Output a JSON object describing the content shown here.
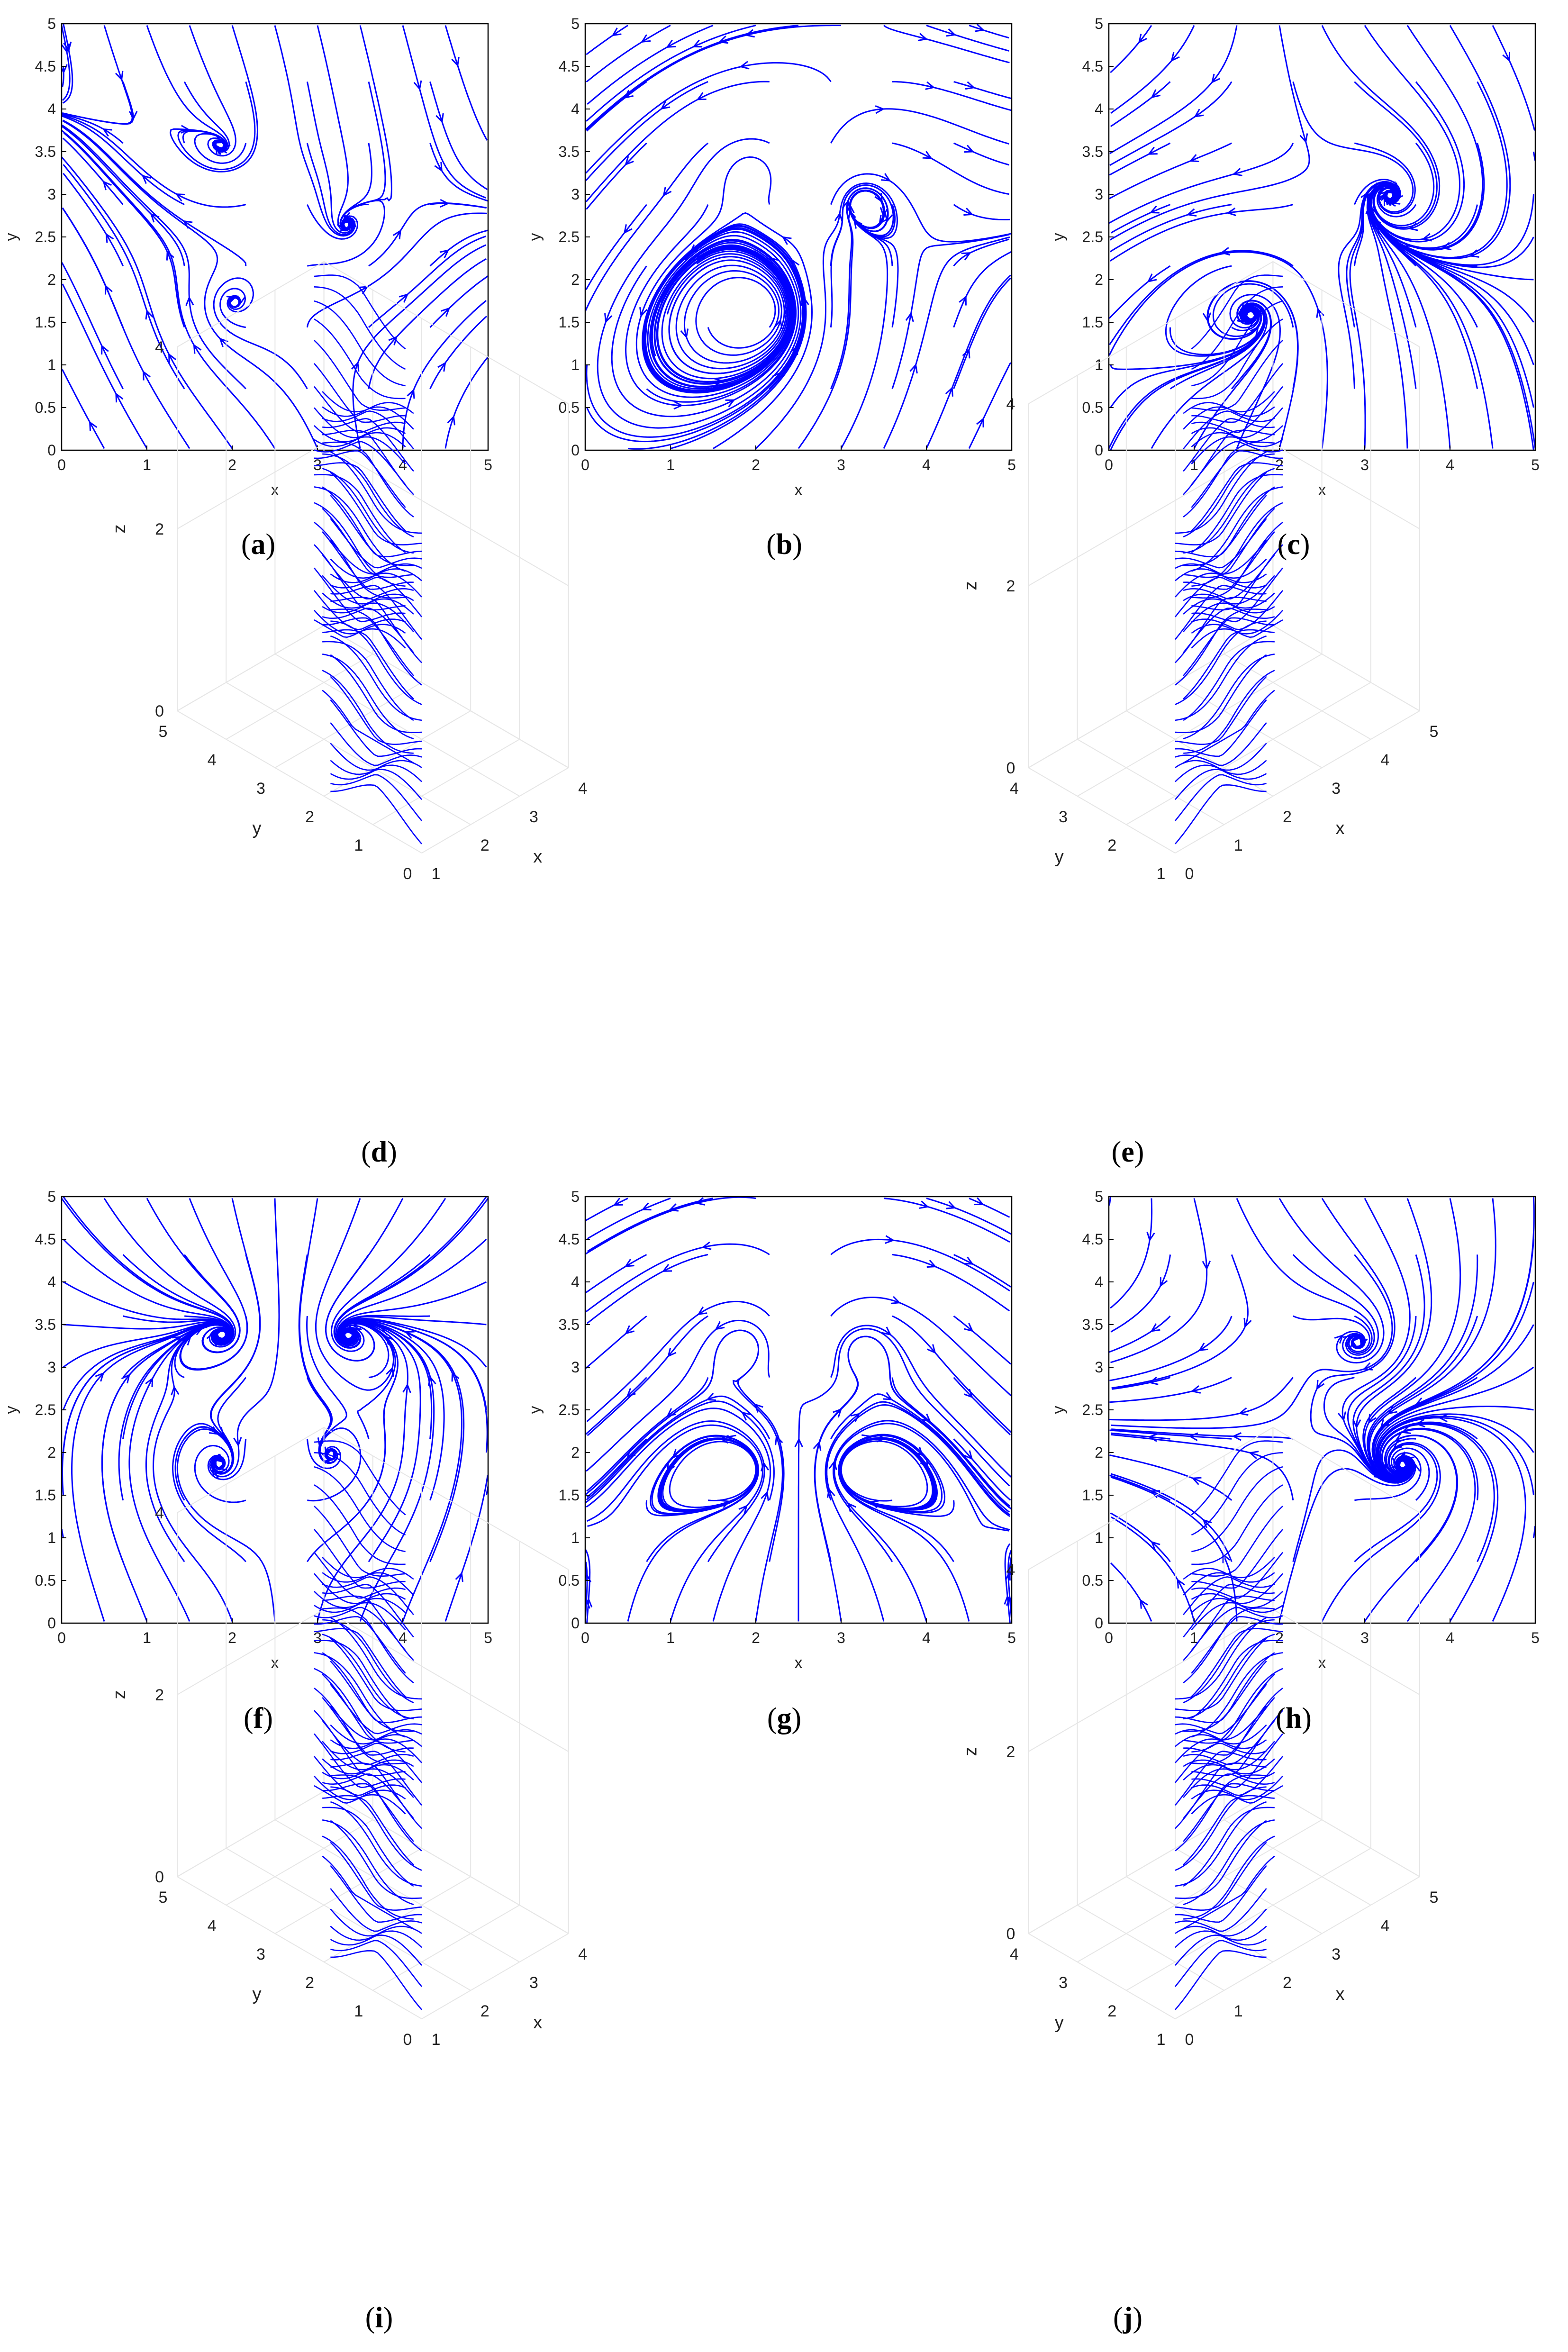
{
  "stroke_color": "#0000ff",
  "axis_color": "#000000",
  "grid_color": "#e6e6e6",
  "panels": [
    {
      "id": "a",
      "label": "a",
      "kind": "2d",
      "chart_data": {
        "type": "streamline",
        "xlabel": "x",
        "ylabel": "y",
        "xlim": [
          0,
          5
        ],
        "ylim": [
          0,
          5
        ],
        "xticks": [
          "0",
          "1",
          "2",
          "3",
          "4",
          "5"
        ],
        "yticks": [
          "0",
          "0.5",
          "1",
          "1.5",
          "2",
          "2.5",
          "3",
          "3.5",
          "4",
          "4.5",
          "5"
        ],
        "critical_points": [
          {
            "x": 1.95,
            "y": 3.55,
            "type": "spiral"
          },
          {
            "x": 3.3,
            "y": 2.6,
            "type": "spiral"
          },
          {
            "x": 2.0,
            "y": 1.7,
            "type": "spiral"
          },
          {
            "x": 2.6,
            "y": 2.55,
            "type": "saddle"
          },
          {
            "x": 2.4,
            "y": 3.3,
            "type": "saddle"
          }
        ]
      }
    },
    {
      "id": "b",
      "label": "b",
      "kind": "2d",
      "chart_data": {
        "type": "streamline",
        "xlabel": "x",
        "ylabel": "y",
        "xlim": [
          0,
          5
        ],
        "ylim": [
          0,
          5
        ],
        "xticks": [
          "0",
          "1",
          "2",
          "3",
          "4",
          "5"
        ],
        "yticks": [
          "0",
          "0.5",
          "1",
          "1.5",
          "2",
          "2.5",
          "3",
          "3.5",
          "4",
          "4.5",
          "5"
        ],
        "critical_points": [
          {
            "x": 1.95,
            "y": 3.25,
            "type": "center"
          },
          {
            "x": 3.25,
            "y": 2.9,
            "type": "center"
          },
          {
            "x": 2.0,
            "y": 1.65,
            "type": "center"
          },
          {
            "x": 2.65,
            "y": 2.5,
            "type": "saddle"
          }
        ]
      }
    },
    {
      "id": "c",
      "label": "c",
      "kind": "2d",
      "chart_data": {
        "type": "streamline",
        "xlabel": "x",
        "ylabel": "y",
        "xlim": [
          0,
          5
        ],
        "ylim": [
          0,
          5
        ],
        "xticks": [
          "0",
          "1",
          "2",
          "3",
          "4",
          "5"
        ],
        "yticks": [
          "0",
          "0.5",
          "1",
          "1.5",
          "2",
          "2.5",
          "3",
          "3.5",
          "4",
          "4.5",
          "5"
        ],
        "critical_points": [
          {
            "x": 3.3,
            "y": 3.0,
            "type": "spiral"
          },
          {
            "x": 1.7,
            "y": 1.6,
            "type": "spiral"
          },
          {
            "x": 2.5,
            "y": 2.4,
            "type": "saddle"
          }
        ]
      }
    },
    {
      "id": "d",
      "label": "d",
      "kind": "3d",
      "chart_data": {
        "type": "streamslice",
        "xlabel": "x",
        "ylabel": "y",
        "zlabel": "z",
        "xticks": [
          "1",
          "2",
          "3",
          "4"
        ],
        "yticks": [
          "0",
          "1",
          "2",
          "3",
          "4",
          "5"
        ],
        "zticks": [
          "0",
          "2",
          "4"
        ]
      }
    },
    {
      "id": "e",
      "label": "e",
      "kind": "3d",
      "chart_data": {
        "type": "streamslice",
        "xlabel": "x",
        "ylabel": "y",
        "zlabel": "z",
        "xticks": [
          "0",
          "1",
          "2",
          "3",
          "4",
          "5"
        ],
        "yticks": [
          "1",
          "2",
          "3",
          "4"
        ],
        "zticks": [
          "0",
          "2",
          "4"
        ]
      }
    },
    {
      "id": "f",
      "label": "f",
      "kind": "2d",
      "chart_data": {
        "type": "streamline",
        "xlabel": "x",
        "ylabel": "y",
        "xlim": [
          0,
          5
        ],
        "ylim": [
          0,
          5
        ],
        "xticks": [
          "0",
          "1",
          "2",
          "3",
          "4",
          "5"
        ],
        "yticks": [
          "0",
          "0.5",
          "1",
          "1.5",
          "2",
          "2.5",
          "3",
          "3.5",
          "4",
          "4.5",
          "5"
        ],
        "critical_points": [
          {
            "x": 1.95,
            "y": 3.4,
            "type": "spiral"
          },
          {
            "x": 3.3,
            "y": 3.4,
            "type": "spiral"
          },
          {
            "x": 1.85,
            "y": 1.85,
            "type": "spiral"
          },
          {
            "x": 3.15,
            "y": 1.95,
            "type": "spiral"
          },
          {
            "x": 2.6,
            "y": 2.6,
            "type": "saddle"
          }
        ]
      }
    },
    {
      "id": "g",
      "label": "g",
      "kind": "2d",
      "chart_data": {
        "type": "streamline",
        "xlabel": "x",
        "ylabel": "y",
        "xlim": [
          0,
          5
        ],
        "ylim": [
          0,
          5
        ],
        "xticks": [
          "0",
          "1",
          "2",
          "3",
          "4",
          "5"
        ],
        "yticks": [
          "0",
          "0.5",
          "1",
          "1.5",
          "2",
          "2.5",
          "3",
          "3.5",
          "4",
          "4.5",
          "5"
        ],
        "critical_points": [
          {
            "x": 1.85,
            "y": 3.25,
            "type": "center"
          },
          {
            "x": 3.25,
            "y": 3.2,
            "type": "center"
          },
          {
            "x": 1.85,
            "y": 1.8,
            "type": "center"
          },
          {
            "x": 3.15,
            "y": 1.8,
            "type": "center"
          },
          {
            "x": 2.5,
            "y": 2.5,
            "type": "saddle"
          }
        ]
      }
    },
    {
      "id": "h",
      "label": "h",
      "kind": "2d",
      "chart_data": {
        "type": "streamline",
        "xlabel": "x",
        "ylabel": "y",
        "xlim": [
          0,
          5
        ],
        "ylim": [
          0,
          5
        ],
        "xticks": [
          "0",
          "1",
          "2",
          "3",
          "4",
          "5"
        ],
        "yticks": [
          "0",
          "0.5",
          "1",
          "1.5",
          "2",
          "2.5",
          "3",
          "3.5",
          "4",
          "4.5",
          "5"
        ],
        "critical_points": [
          {
            "x": 2.95,
            "y": 3.3,
            "type": "spiral"
          },
          {
            "x": 3.45,
            "y": 1.85,
            "type": "spiral"
          },
          {
            "x": 2.3,
            "y": 2.2,
            "type": "saddle"
          }
        ]
      }
    },
    {
      "id": "i",
      "label": "i",
      "kind": "3d",
      "chart_data": {
        "type": "streamslice",
        "xlabel": "x",
        "ylabel": "y",
        "zlabel": "z",
        "xticks": [
          "1",
          "2",
          "3",
          "4"
        ],
        "yticks": [
          "0",
          "1",
          "2",
          "3",
          "4",
          "5"
        ],
        "zticks": [
          "0",
          "2",
          "4"
        ]
      }
    },
    {
      "id": "j",
      "label": "j",
      "kind": "3d",
      "chart_data": {
        "type": "streamslice",
        "xlabel": "x",
        "ylabel": "y",
        "zlabel": "z",
        "xticks": [
          "0",
          "1",
          "2",
          "3",
          "4",
          "5"
        ],
        "yticks": [
          "1",
          "2",
          "3",
          "4"
        ],
        "zticks": [
          "0",
          "2",
          "4"
        ]
      }
    }
  ]
}
